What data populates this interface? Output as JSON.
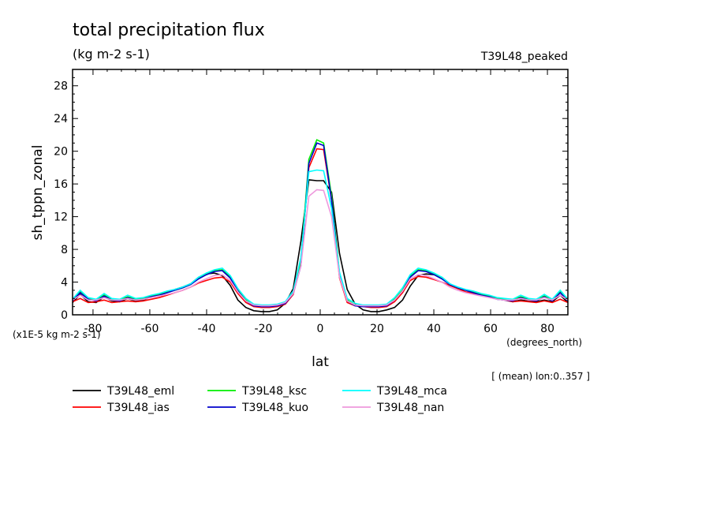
{
  "chart_data": {
    "type": "line",
    "title": "total precipitation flux",
    "subtitle": "(kg m-2 s-1)",
    "experiment_label": "T39L48_peaked",
    "xlabel": "lat",
    "xunits": "(degrees_north)",
    "ylabel": "sh_tppn_zonal",
    "yscale_note": "(x1E-5 kg m-2 s-1)",
    "footnote": "[ (mean) lon:0..357 ]",
    "xlim": [
      -87.2,
      87.2
    ],
    "ylim": [
      0,
      30
    ],
    "xticks": [
      -80,
      -60,
      -40,
      -20,
      0,
      20,
      40,
      60,
      80
    ],
    "yticks": [
      0,
      4,
      8,
      12,
      16,
      20,
      24,
      28
    ],
    "x": [
      -87.2,
      -84.5,
      -81.7,
      -78.9,
      -76.1,
      -73.4,
      -70.6,
      -67.8,
      -65.0,
      -62.3,
      -59.5,
      -56.7,
      -53.9,
      -51.2,
      -48.4,
      -45.6,
      -42.8,
      -40.1,
      -37.3,
      -34.5,
      -31.7,
      -29.0,
      -26.2,
      -23.4,
      -20.6,
      -17.9,
      -15.1,
      -12.3,
      -9.5,
      -6.8,
      -4.0,
      -1.2,
      1.2,
      4.0,
      6.8,
      9.5,
      12.3,
      15.1,
      17.9,
      20.6,
      23.4,
      26.2,
      29.0,
      31.7,
      34.5,
      37.3,
      40.1,
      42.8,
      45.6,
      48.4,
      51.2,
      53.9,
      56.7,
      59.5,
      62.3,
      65.0,
      67.8,
      70.6,
      73.4,
      76.1,
      78.9,
      81.7,
      84.5,
      87.2
    ],
    "series": [
      {
        "name": "T39L48_eml",
        "color": "#000000",
        "values": [
          1.5,
          2.5,
          1.6,
          1.5,
          2.2,
          1.7,
          1.6,
          2.0,
          1.7,
          1.8,
          2.2,
          2.4,
          2.8,
          3.1,
          3.4,
          3.8,
          4.6,
          5.0,
          5.1,
          4.8,
          3.6,
          1.8,
          0.9,
          0.5,
          0.4,
          0.4,
          0.6,
          1.4,
          3.2,
          9.0,
          16.5,
          16.4,
          16.4,
          15.0,
          7.5,
          3.1,
          1.3,
          0.6,
          0.4,
          0.4,
          0.6,
          0.9,
          1.8,
          3.5,
          4.8,
          5.0,
          4.9,
          4.6,
          3.8,
          3.2,
          3.0,
          2.7,
          2.5,
          2.3,
          2.0,
          1.8,
          1.6,
          1.8,
          1.7,
          1.6,
          1.8,
          1.6,
          2.4,
          1.5
        ]
      },
      {
        "name": "T39L48_ias",
        "color": "#ff0000",
        "values": [
          1.6,
          2.0,
          1.5,
          1.6,
          1.8,
          1.5,
          1.6,
          1.7,
          1.6,
          1.7,
          1.9,
          2.1,
          2.4,
          2.7,
          3.0,
          3.4,
          3.9,
          4.2,
          4.5,
          4.6,
          4.0,
          2.6,
          1.5,
          1.0,
          0.9,
          0.9,
          1.0,
          1.3,
          2.5,
          6.5,
          18.0,
          20.3,
          20.2,
          14.0,
          4.5,
          1.5,
          1.1,
          1.0,
          0.9,
          0.9,
          1.0,
          1.6,
          2.7,
          4.2,
          4.7,
          4.6,
          4.3,
          4.0,
          3.6,
          3.2,
          2.8,
          2.6,
          2.4,
          2.2,
          2.0,
          1.8,
          1.6,
          1.7,
          1.6,
          1.5,
          1.7,
          1.5,
          1.9,
          1.5
        ]
      },
      {
        "name": "T39L48_ksc",
        "color": "#00ee00",
        "values": [
          1.8,
          2.8,
          2.0,
          1.8,
          2.4,
          1.9,
          1.8,
          2.2,
          1.9,
          2.0,
          2.3,
          2.5,
          2.8,
          3.0,
          3.3,
          3.7,
          4.5,
          5.0,
          5.4,
          5.5,
          4.6,
          3.0,
          1.8,
          1.2,
          1.1,
          1.1,
          1.2,
          1.5,
          2.8,
          6.5,
          19.0,
          21.4,
          21.0,
          14.5,
          5.0,
          1.8,
          1.2,
          1.1,
          1.1,
          1.1,
          1.2,
          1.9,
          3.0,
          4.7,
          5.5,
          5.4,
          5.0,
          4.5,
          3.7,
          3.3,
          3.0,
          2.8,
          2.5,
          2.3,
          2.0,
          1.9,
          1.8,
          2.2,
          1.9,
          1.8,
          2.3,
          1.8,
          2.8,
          1.8
        ]
      },
      {
        "name": "T39L48_kuo",
        "color": "#0000cc",
        "values": [
          1.7,
          2.7,
          1.9,
          1.7,
          2.3,
          1.8,
          1.7,
          2.1,
          1.8,
          1.9,
          2.2,
          2.4,
          2.7,
          3.0,
          3.3,
          3.7,
          4.4,
          4.9,
          5.3,
          5.4,
          4.5,
          2.9,
          1.7,
          1.1,
          1.0,
          1.0,
          1.1,
          1.4,
          2.6,
          6.0,
          18.5,
          21.0,
          20.7,
          14.0,
          4.8,
          1.7,
          1.1,
          1.0,
          1.0,
          1.0,
          1.1,
          1.8,
          2.9,
          4.6,
          5.4,
          5.3,
          4.9,
          4.4,
          3.7,
          3.3,
          3.0,
          2.7,
          2.4,
          2.2,
          1.9,
          1.8,
          1.7,
          2.1,
          1.8,
          1.7,
          2.2,
          1.7,
          2.7,
          1.7
        ]
      },
      {
        "name": "T39L48_mca",
        "color": "#00ffff",
        "values": [
          1.9,
          3.0,
          2.1,
          1.9,
          2.6,
          2.0,
          1.9,
          2.4,
          2.0,
          2.1,
          2.4,
          2.6,
          2.9,
          3.1,
          3.4,
          3.8,
          4.6,
          5.1,
          5.5,
          5.7,
          4.8,
          3.2,
          2.0,
          1.3,
          1.2,
          1.2,
          1.3,
          1.6,
          2.9,
          7.0,
          17.5,
          17.7,
          17.6,
          13.0,
          5.2,
          2.0,
          1.4,
          1.2,
          1.2,
          1.2,
          1.3,
          2.1,
          3.3,
          4.9,
          5.7,
          5.5,
          5.1,
          4.6,
          3.8,
          3.4,
          3.1,
          2.9,
          2.6,
          2.4,
          2.1,
          2.0,
          1.9,
          2.4,
          2.0,
          1.9,
          2.5,
          1.9,
          3.0,
          1.9
        ]
      },
      {
        "name": "T39L48_nan",
        "color": "#ee99dd",
        "values": [
          1.8,
          2.4,
          1.8,
          1.8,
          2.1,
          1.8,
          1.8,
          2.0,
          1.8,
          1.9,
          2.1,
          2.3,
          2.5,
          2.7,
          3.0,
          3.4,
          4.0,
          4.4,
          4.8,
          4.9,
          4.2,
          2.8,
          1.7,
          1.2,
          1.1,
          1.1,
          1.2,
          1.5,
          2.6,
          6.0,
          14.5,
          15.3,
          15.2,
          12.0,
          4.6,
          1.7,
          1.2,
          1.1,
          1.1,
          1.1,
          1.2,
          1.8,
          2.9,
          4.4,
          4.9,
          4.8,
          4.4,
          4.0,
          3.4,
          3.0,
          2.7,
          2.5,
          2.3,
          2.1,
          1.9,
          1.8,
          1.8,
          2.0,
          1.8,
          1.8,
          2.1,
          1.8,
          2.4,
          1.8
        ]
      }
    ],
    "legend_position": "bottom-left",
    "grid": false
  }
}
